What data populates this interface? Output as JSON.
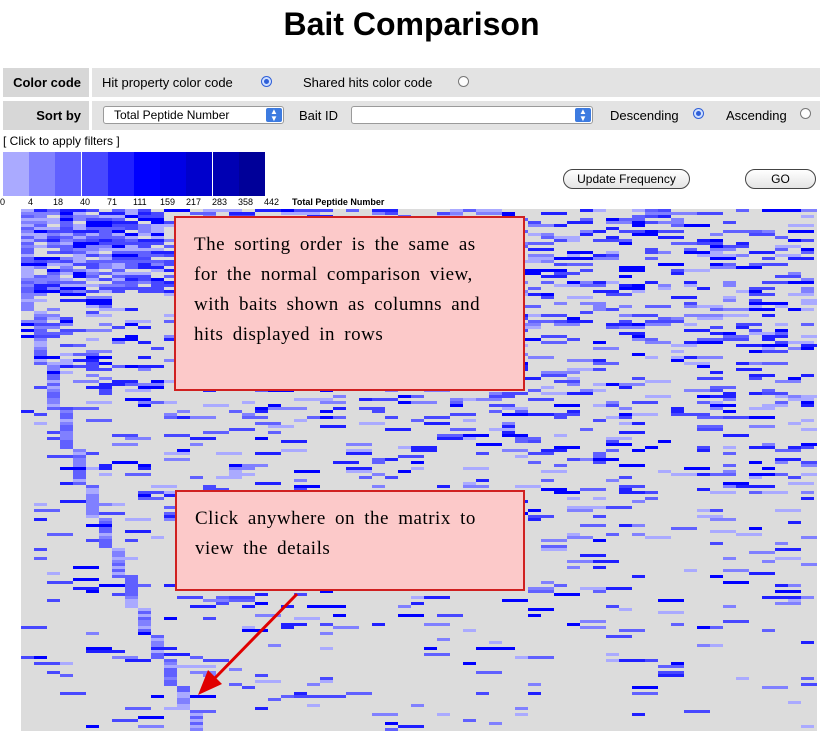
{
  "page": {
    "title": "Bait Comparison"
  },
  "controls": {
    "color_code": {
      "heading": "Color code",
      "options": [
        {
          "label": "Hit property color code",
          "selected": true
        },
        {
          "label": "Shared hits color code",
          "selected": false
        }
      ]
    },
    "sort_by": {
      "heading": "Sort by",
      "selected_value": "Total Peptide Number",
      "bait_id_label": "Bait ID",
      "bait_id_value": "",
      "order_options": [
        {
          "label": "Descending",
          "selected": true
        },
        {
          "label": "Ascending",
          "selected": false
        }
      ]
    }
  },
  "filters_link": "[ Click to apply filters ]",
  "legend": {
    "colors": [
      "#aaaaff",
      "#8080ff",
      "#6060ff",
      "#4848ff",
      "#2020ff",
      "#0000ff",
      "#0000e6",
      "#0000cc",
      "#0000b3",
      "#000099"
    ],
    "ticks": [
      "0",
      "4",
      "18",
      "40",
      "71",
      "111",
      "159",
      "217",
      "283",
      "358",
      "442"
    ],
    "caption": "Total Peptide Number"
  },
  "buttons": {
    "update_frequency": "Update Frequency",
    "go": "GO"
  },
  "matrix": {
    "background": "#dcdcdc",
    "shades": [
      "#aaaaff",
      "#8080ff",
      "#6060ff",
      "#4848ff",
      "#2020ff",
      "#0000ff"
    ]
  },
  "callouts": {
    "sorting": "The sorting order is the same as for the normal comparison view, with baits shown as columns and hits displayed in rows",
    "click": "Click anywhere on the matrix to view the details"
  },
  "accents": {
    "callout_fill": "#fcc9c9",
    "callout_border": "#d02020",
    "arrow": "#e00000"
  }
}
